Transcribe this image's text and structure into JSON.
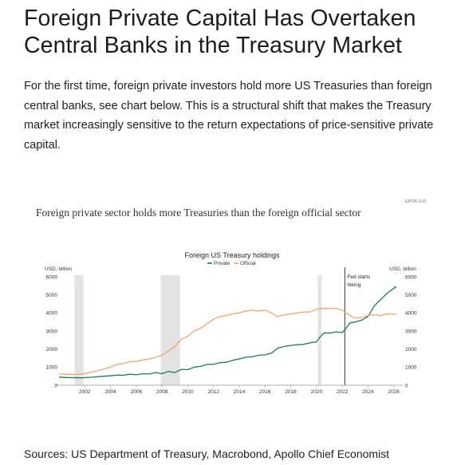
{
  "headline": "Foreign Private Capital Has Overtaken Central Banks in the Treasury Market",
  "intro": "For the first time, foreign private investors hold more US Treasuries than foreign central banks, see chart below. This is a structural shift that makes the Treasury market increasingly sensitive to the return expectations of price-sensitive private capital.",
  "figure": {
    "brand": "APOLLO",
    "caption": "Foreign private sector holds more Treasuries than the foreign official sector"
  },
  "sources": "Sources: US Department of Treasury, Macrobond, Apollo Chief Economist",
  "chart_data": {
    "type": "line",
    "title": "Foreign US Treasury holdings",
    "ylabel_left": "USD, billion",
    "ylabel_right": "USD, billion",
    "xlim": [
      2000.0,
      2026.7
    ],
    "ylim": [
      0,
      6000
    ],
    "x_ticks": [
      "2002",
      "2004",
      "2006",
      "2008",
      "2010",
      "2012",
      "2014",
      "2016",
      "2018",
      "2020",
      "2022",
      "2024",
      "2026"
    ],
    "y_ticks": [
      "0",
      "1000",
      "2000",
      "3000",
      "4000",
      "5000",
      "6000"
    ],
    "grid": false,
    "legend": "top-center",
    "recessions": [
      [
        2001.2,
        2001.9
      ],
      [
        2007.9,
        2009.4
      ],
      [
        2020.1,
        2020.4
      ]
    ],
    "annotation": {
      "x": 2022.2,
      "text": [
        "Fed starts",
        "hiking"
      ]
    },
    "series": [
      {
        "name": "Private",
        "color": "#1e7b5a",
        "points": [
          [
            2000.0,
            450
          ],
          [
            2000.5,
            430
          ],
          [
            2001.0,
            420
          ],
          [
            2001.5,
            410
          ],
          [
            2002.0,
            420
          ],
          [
            2002.5,
            440
          ],
          [
            2003.0,
            470
          ],
          [
            2003.5,
            500
          ],
          [
            2004.0,
            520
          ],
          [
            2004.5,
            560
          ],
          [
            2005.0,
            550
          ],
          [
            2005.5,
            610
          ],
          [
            2006.0,
            580
          ],
          [
            2006.5,
            640
          ],
          [
            2007.0,
            620
          ],
          [
            2007.5,
            700
          ],
          [
            2008.0,
            640
          ],
          [
            2008.5,
            760
          ],
          [
            2009.0,
            700
          ],
          [
            2009.5,
            880
          ],
          [
            2010.0,
            860
          ],
          [
            2010.5,
            1000
          ],
          [
            2011.0,
            1040
          ],
          [
            2011.5,
            1150
          ],
          [
            2012.0,
            1160
          ],
          [
            2012.5,
            1250
          ],
          [
            2013.0,
            1270
          ],
          [
            2013.5,
            1380
          ],
          [
            2014.0,
            1450
          ],
          [
            2014.5,
            1550
          ],
          [
            2015.0,
            1570
          ],
          [
            2015.5,
            1660
          ],
          [
            2016.0,
            1680
          ],
          [
            2016.5,
            1780
          ],
          [
            2017.0,
            2050
          ],
          [
            2017.5,
            2150
          ],
          [
            2018.0,
            2200
          ],
          [
            2018.5,
            2240
          ],
          [
            2019.0,
            2260
          ],
          [
            2019.5,
            2350
          ],
          [
            2020.0,
            2400
          ],
          [
            2020.3,
            2700
          ],
          [
            2020.6,
            2900
          ],
          [
            2021.0,
            2880
          ],
          [
            2021.5,
            2950
          ],
          [
            2022.0,
            2920
          ],
          [
            2022.3,
            3150
          ],
          [
            2022.6,
            3450
          ],
          [
            2023.0,
            3500
          ],
          [
            2023.5,
            3600
          ],
          [
            2024.0,
            3800
          ],
          [
            2024.5,
            4400
          ],
          [
            2025.0,
            4750
          ],
          [
            2025.5,
            5100
          ],
          [
            2026.0,
            5350
          ],
          [
            2026.1,
            5450
          ],
          [
            2026.2,
            5400
          ]
        ]
      },
      {
        "name": "Official",
        "color": "#f0a470",
        "points": [
          [
            2000.0,
            620
          ],
          [
            2000.5,
            610
          ],
          [
            2001.0,
            600
          ],
          [
            2001.5,
            610
          ],
          [
            2002.0,
            640
          ],
          [
            2002.5,
            720
          ],
          [
            2003.0,
            800
          ],
          [
            2003.5,
            900
          ],
          [
            2004.0,
            1000
          ],
          [
            2004.5,
            1150
          ],
          [
            2005.0,
            1200
          ],
          [
            2005.5,
            1300
          ],
          [
            2006.0,
            1320
          ],
          [
            2006.5,
            1400
          ],
          [
            2007.0,
            1450
          ],
          [
            2007.5,
            1550
          ],
          [
            2008.0,
            1650
          ],
          [
            2008.5,
            1900
          ],
          [
            2009.0,
            2150
          ],
          [
            2009.5,
            2550
          ],
          [
            2010.0,
            2700
          ],
          [
            2010.5,
            3000
          ],
          [
            2011.0,
            3150
          ],
          [
            2011.5,
            3400
          ],
          [
            2012.0,
            3650
          ],
          [
            2012.5,
            3800
          ],
          [
            2013.0,
            3850
          ],
          [
            2013.5,
            3950
          ],
          [
            2014.0,
            4000
          ],
          [
            2014.5,
            4100
          ],
          [
            2015.0,
            4150
          ],
          [
            2015.5,
            4100
          ],
          [
            2016.0,
            4150
          ],
          [
            2016.5,
            4000
          ],
          [
            2017.0,
            3800
          ],
          [
            2017.5,
            3900
          ],
          [
            2018.0,
            3950
          ],
          [
            2018.5,
            4000
          ],
          [
            2019.0,
            4050
          ],
          [
            2019.5,
            4050
          ],
          [
            2020.0,
            4200
          ],
          [
            2020.5,
            4250
          ],
          [
            2021.0,
            4250
          ],
          [
            2021.5,
            4250
          ],
          [
            2022.0,
            4150
          ],
          [
            2022.5,
            3900
          ],
          [
            2023.0,
            3700
          ],
          [
            2023.5,
            3750
          ],
          [
            2024.0,
            3850
          ],
          [
            2024.5,
            3900
          ],
          [
            2025.0,
            3850
          ],
          [
            2025.5,
            3950
          ],
          [
            2026.0,
            3950
          ],
          [
            2026.2,
            3900
          ]
        ]
      }
    ]
  }
}
